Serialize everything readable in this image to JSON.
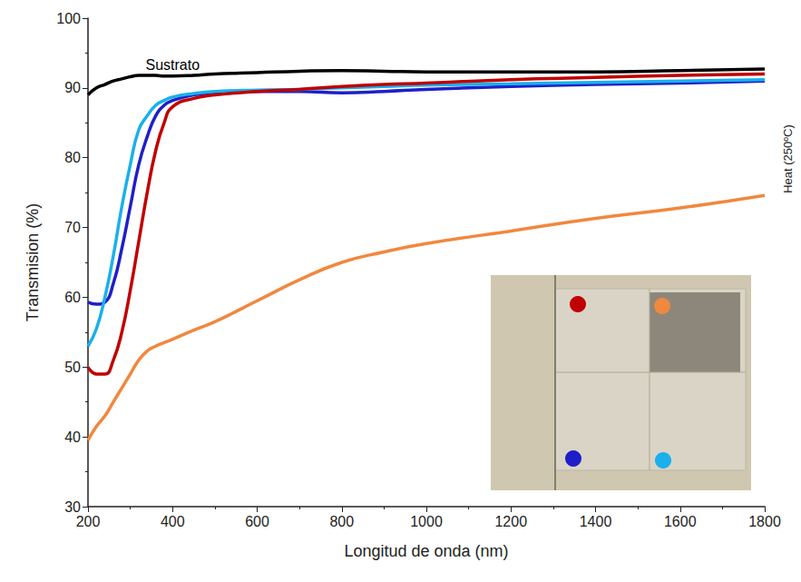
{
  "chart_data": {
    "type": "line",
    "x_label": "Longitud de onda (nm)",
    "y_label": "Transmision (%)",
    "annotations": [
      "Heat (250ºC)"
    ],
    "x": [
      200,
      220,
      240,
      260,
      280,
      300,
      320,
      340,
      360,
      380,
      400,
      450,
      500,
      600,
      700,
      800,
      900,
      1000,
      1200,
      1400,
      1600,
      1800
    ],
    "series": [
      {
        "name": "Sustrato",
        "color": "#000000",
        "values": [
          89,
          90,
          90.5,
          91,
          91.3,
          91.6,
          91.8,
          91.8,
          91.8,
          91.7,
          91.7,
          91.8,
          92,
          92.2,
          92.4,
          92.5,
          92.4,
          92.3,
          92.3,
          92.3,
          92.5,
          92.7
        ]
      },
      {
        "color": "#1f1fc8",
        "values": [
          59.3,
          59,
          59.3,
          62,
          67,
          73,
          79,
          83,
          86,
          87.5,
          88.2,
          89,
          89.3,
          89.5,
          89.5,
          89.3,
          89.5,
          89.8,
          90.2,
          90.5,
          90.7,
          91
        ]
      },
      {
        "color": "#1ab0ec",
        "values": [
          53,
          55.5,
          60,
          66,
          73,
          79,
          84,
          86,
          87.5,
          88.2,
          88.7,
          89.2,
          89.5,
          89.7,
          89.8,
          90,
          90.2,
          90.4,
          90.6,
          90.8,
          91,
          91.2
        ]
      },
      {
        "color": "#c00000",
        "values": [
          50,
          49,
          49,
          51,
          55,
          61,
          68,
          75,
          81,
          85,
          87.3,
          88.5,
          89,
          89.5,
          89.8,
          90.2,
          90.5,
          90.7,
          91.2,
          91.5,
          91.8,
          92
        ]
      },
      {
        "color": "#f0883e",
        "values": [
          39.5,
          41.5,
          43,
          45,
          47,
          49,
          51,
          52.3,
          53,
          53.5,
          54,
          55.3,
          56.5,
          59.5,
          62.5,
          65,
          66.5,
          67.7,
          69.5,
          71.3,
          72.8,
          74.6
        ]
      }
    ],
    "xlim": [
      200,
      1800
    ],
    "xticks": [
      200,
      400,
      600,
      800,
      1000,
      1200,
      1400,
      1600,
      1800
    ],
    "ylim": [
      30,
      100
    ],
    "yticks": [
      30,
      40,
      50,
      60,
      70,
      80,
      90,
      100
    ],
    "grid": false
  }
}
